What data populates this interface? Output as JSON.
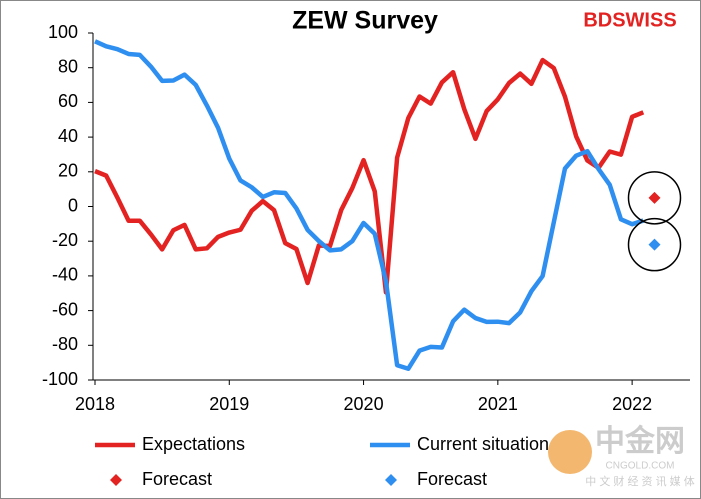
{
  "chart_data": {
    "type": "line",
    "title": "ZEW Survey",
    "categories": [
      "2018",
      null,
      null,
      null,
      null,
      null,
      null,
      null,
      null,
      null,
      null,
      null,
      "2019",
      null,
      null,
      null,
      null,
      null,
      null,
      null,
      null,
      null,
      null,
      null,
      "2020",
      null,
      null,
      null,
      null,
      null,
      null,
      null,
      null,
      null,
      null,
      null,
      "2021",
      null,
      null,
      null,
      null,
      null,
      null,
      null,
      null,
      null,
      null,
      null,
      "2022",
      null,
      null
    ],
    "series": [
      {
        "name": "Expectations",
        "color": "#e32322",
        "style": "line",
        "values": [
          20.4,
          17.8,
          5.1,
          -8.2,
          -8.2,
          -16.1,
          -24.7,
          -13.7,
          -10.6,
          -24.7,
          -24.1,
          -17.5,
          -15.0,
          -13.4,
          -2.5,
          3.1,
          -2.1,
          -21.1,
          -24.5,
          -44.1,
          -22.5,
          -22.8,
          -2.1,
          10.7,
          26.7,
          8.7,
          -49.5,
          28.2,
          51.0,
          63.4,
          59.3,
          71.5,
          77.4,
          56.1,
          39.0,
          55.0,
          61.8,
          71.2,
          76.6,
          70.7,
          84.4,
          79.8,
          63.3,
          40.4,
          26.5,
          22.3,
          31.7,
          29.9,
          51.7,
          54.3,
          null
        ]
      },
      {
        "name": "Current situation",
        "color": "#2f8ff0",
        "style": "line",
        "values": [
          95.2,
          92.3,
          90.7,
          87.9,
          87.4,
          80.6,
          72.4,
          72.6,
          76.0,
          70.1,
          58.2,
          45.3,
          27.6,
          15.0,
          11.1,
          5.5,
          8.2,
          7.8,
          -1.1,
          -13.5,
          -19.9,
          -25.3,
          -24.7,
          -19.9,
          -9.5,
          -15.7,
          -43.1,
          -91.5,
          -93.5,
          -83.1,
          -80.9,
          -81.3,
          -66.2,
          -59.5,
          -64.3,
          -66.5,
          -66.4,
          -67.2,
          -61.0,
          -48.8,
          -40.1,
          -9.1,
          21.9,
          29.3,
          31.9,
          21.6,
          12.5,
          -7.4,
          -10.2,
          -8.1,
          null
        ]
      },
      {
        "name": "Forecast",
        "color": "#e32322",
        "style": "marker",
        "values": [
          null,
          null,
          null,
          null,
          null,
          null,
          null,
          null,
          null,
          null,
          null,
          null,
          null,
          null,
          null,
          null,
          null,
          null,
          null,
          null,
          null,
          null,
          null,
          null,
          null,
          null,
          null,
          null,
          null,
          null,
          null,
          null,
          null,
          null,
          null,
          null,
          null,
          null,
          null,
          null,
          null,
          null,
          null,
          null,
          null,
          null,
          null,
          null,
          null,
          null,
          5
        ]
      },
      {
        "name": "Forecast",
        "color": "#2f8ff0",
        "style": "marker",
        "values": [
          null,
          null,
          null,
          null,
          null,
          null,
          null,
          null,
          null,
          null,
          null,
          null,
          null,
          null,
          null,
          null,
          null,
          null,
          null,
          null,
          null,
          null,
          null,
          null,
          null,
          null,
          null,
          null,
          null,
          null,
          null,
          null,
          null,
          null,
          null,
          null,
          null,
          null,
          null,
          null,
          null,
          null,
          null,
          null,
          null,
          null,
          null,
          null,
          null,
          null,
          -22
        ]
      }
    ],
    "ylim": [
      -100,
      100
    ],
    "yticks": [
      -100,
      -80,
      -60,
      -40,
      -20,
      0,
      20,
      40,
      60,
      80,
      100
    ],
    "grid": false,
    "legend": "bottom"
  },
  "branding": {
    "logo": "BDSWISS",
    "watermark": "中金网",
    "watermark_url": "CNGOLD.COM",
    "watermark_tagline": "中 文 财 经 资 讯 媒 体"
  }
}
